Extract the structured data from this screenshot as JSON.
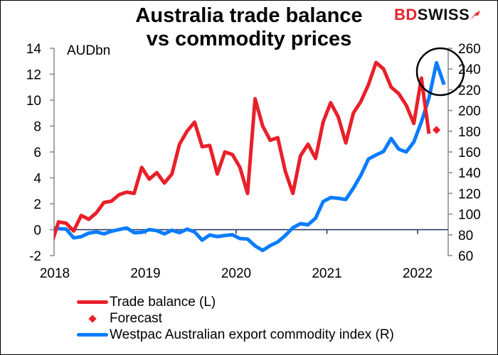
{
  "title_line1": "Australia trade balance",
  "title_line2": "vs commodity prices",
  "logo": {
    "part1": "BD",
    "part2": "SWISS"
  },
  "chart_data": {
    "type": "line",
    "title": "Australia trade balance vs commodity prices",
    "frequency": "monthly",
    "start": "Dec 2017",
    "left_axis": {
      "label": "AUDbn",
      "ylim": [
        -2,
        14
      ],
      "ticks": [
        -2,
        0,
        2,
        4,
        6,
        8,
        10,
        12,
        14
      ]
    },
    "right_axis": {
      "ylim": [
        60,
        260
      ],
      "ticks": [
        60,
        80,
        100,
        120,
        140,
        160,
        180,
        200,
        220,
        240,
        260
      ]
    },
    "x_ticks": [
      "2018",
      "2019",
      "2020",
      "2021",
      "2022"
    ],
    "series": [
      {
        "name": "Trade balance (L)",
        "axis": "left",
        "color": "#e8202a",
        "values": [
          -1.2,
          0.6,
          0.5,
          -0.1,
          1.1,
          0.8,
          1.3,
          2.1,
          2.2,
          2.7,
          2.9,
          2.8,
          4.8,
          3.9,
          4.4,
          3.6,
          4.3,
          6.6,
          7.6,
          8.3,
          6.4,
          6.5,
          4.3,
          6.0,
          5.8,
          4.8,
          2.8,
          10.1,
          8.0,
          6.9,
          7.1,
          4.5,
          2.8,
          5.7,
          6.6,
          5.5,
          8.3,
          9.8,
          8.7,
          6.7,
          9.0,
          9.9,
          11.2,
          12.9,
          12.4,
          11.0,
          10.5,
          9.6,
          8.2,
          11.7,
          7.4
        ]
      },
      {
        "name": "Forecast",
        "axis": "left",
        "color": "#e8202a",
        "month": "Mar 2022",
        "value": 7.7
      },
      {
        "name": "Westpac Australian export commodity index (R)",
        "axis": "right",
        "color": "#0a7cff",
        "values": [
          86.7,
          86.0,
          85.5,
          77.1,
          78.3,
          81.7,
          82.8,
          81.0,
          83.5,
          85.1,
          86.7,
          82.1,
          82.4,
          85.1,
          84.0,
          81.0,
          84.5,
          82.1,
          85.5,
          82.8,
          74.9,
          79.9,
          78.3,
          79.4,
          80.1,
          76.4,
          76.0,
          69.4,
          65.0,
          69.6,
          73.2,
          79.4,
          86.9,
          90.8,
          89.7,
          96.1,
          112.1,
          116.0,
          115.3,
          114.1,
          125.1,
          137.6,
          153.2,
          157.1,
          160.5,
          173.0,
          162.7,
          160.0,
          169.6,
          189.0,
          211.9,
          246.0,
          224.9
        ]
      }
    ],
    "annotation": "circle around latest commodity index peak",
    "legend": "bottom-left"
  }
}
